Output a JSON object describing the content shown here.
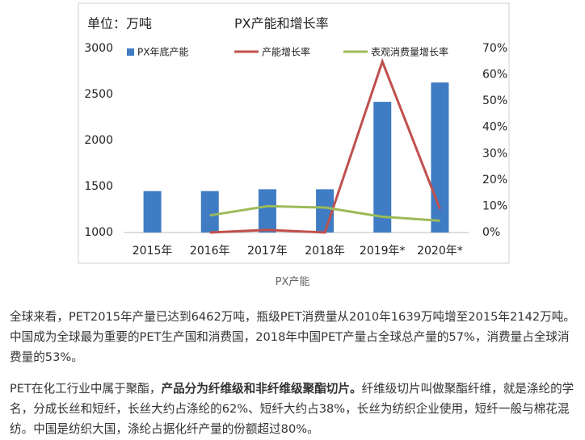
{
  "chart_data": {
    "type": "bar-line",
    "title": "PX产能和增长率",
    "unit_label": "单位：万吨",
    "categories": [
      "2015年",
      "2016年",
      "2017年",
      "2018年",
      "2019年*",
      "2020年*"
    ],
    "series": [
      {
        "name": "PX年底产能",
        "type": "bar",
        "color": "#3f7cc4",
        "values": [
          1450,
          1450,
          1470,
          1470,
          2420,
          2630
        ]
      },
      {
        "name": "产能增长率",
        "type": "line",
        "axis": "y2",
        "color": "#c0504d",
        "values": [
          null,
          0,
          1,
          0,
          65,
          9
        ]
      },
      {
        "name": "表观消费量增长率",
        "type": "line",
        "axis": "y2",
        "color": "#9bbb59",
        "values": [
          null,
          6.5,
          10,
          9.5,
          6,
          4.5
        ]
      }
    ],
    "ylim": [
      1000,
      3000
    ],
    "yticks": [
      1000,
      1500,
      2000,
      2500,
      3000
    ],
    "y2lim": [
      0,
      70
    ],
    "y2ticks": [
      {
        "value": 0,
        "label": "0%"
      },
      {
        "value": 10,
        "label": "10%"
      },
      {
        "value": 20,
        "label": "20%"
      },
      {
        "value": 30,
        "label": "30%"
      },
      {
        "value": 40,
        "label": "40%"
      },
      {
        "value": 50,
        "label": "50%"
      },
      {
        "value": 60,
        "label": "60%"
      },
      {
        "value": 70,
        "label": "70%"
      }
    ],
    "grid": false,
    "legend": "top"
  },
  "caption": "PX产能",
  "paragraphs": [
    [
      {
        "text": "全球来看，PET2015年产量已达到6462万吨，瓶级PET消费量从2010年1639万吨增至2015年2142万吨。中国成为全球最为重要的PET生产国和消费国，2018年中国PET产量占全球总产量的57%，消费量占全球消费量的53%。",
        "bold": false
      }
    ],
    [
      {
        "text": "PET在化工行业中属于聚酯，",
        "bold": false
      },
      {
        "text": "产品分为纤维级和非纤维级聚酯切片。",
        "bold": true
      },
      {
        "text": "纤维级切片叫做聚酯纤维，就是涤纶的学名，分成长丝和短纤，长丝大约占涤纶的62%、短纤大约占38%，长丝为纺织企业使用，短纤一般与棉花混纺。中国是纺织大国，涤纶占据化纤产量的份额超过80%。",
        "bold": false
      }
    ]
  ]
}
